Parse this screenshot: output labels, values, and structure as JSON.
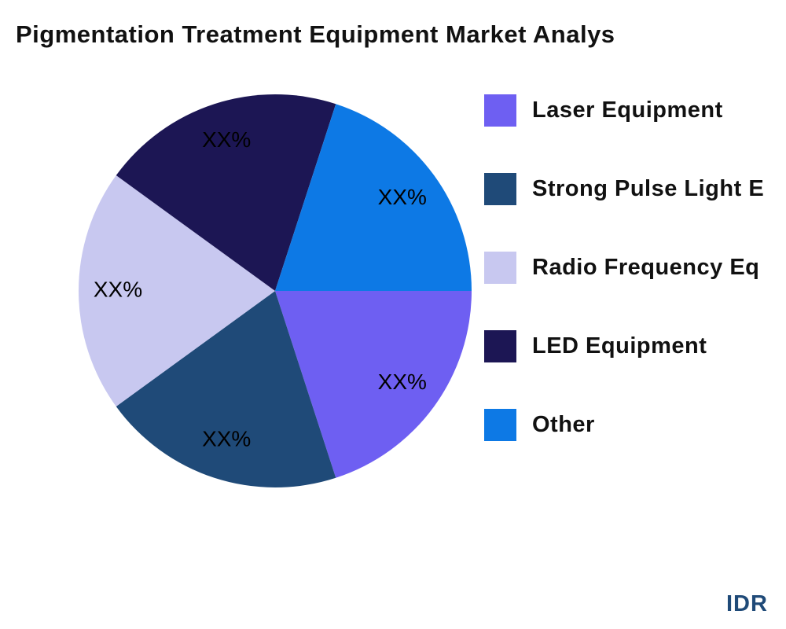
{
  "chart_data": {
    "type": "pie",
    "title": "Pigmentation Treatment Equipment Market Analys",
    "slices": [
      {
        "name": "Laser Equipment",
        "value": 20,
        "label": "XX%",
        "color": "#6e5ff2"
      },
      {
        "name": "Strong Pulse Light E",
        "value": 20,
        "label": "XX%",
        "color": "#1f4a78"
      },
      {
        "name": "Radio Frequency Eq",
        "value": 20,
        "label": "XX%",
        "color": "#c8c8f0"
      },
      {
        "name": "LED Equipment",
        "value": 20,
        "label": "XX%",
        "color": "#1c1654"
      },
      {
        "name": "Other",
        "value": 20,
        "label": "XX%",
        "color": "#0d79e5"
      }
    ],
    "start_angle": "3 o'clock, clockwise",
    "legend_position": "right"
  },
  "logo": "IDR"
}
